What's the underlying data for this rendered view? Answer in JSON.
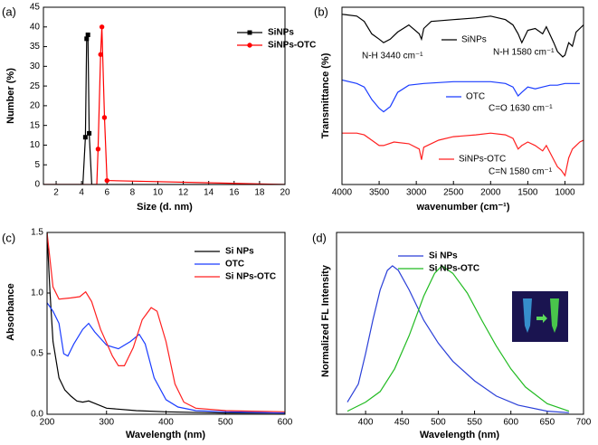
{
  "chart_data": [
    {
      "type": "line",
      "panel_label": "(a)",
      "xlabel": "Size (d. nm)",
      "ylabel": "Number (%)",
      "xlim": [
        1,
        20
      ],
      "xticks": [
        2,
        4,
        6,
        8,
        10,
        12,
        14,
        16,
        18,
        20
      ],
      "ylim": [
        0,
        45
      ],
      "yticks": [
        0,
        5,
        10,
        15,
        20,
        25,
        30,
        35,
        40,
        45
      ],
      "legend": "upper right",
      "series": [
        {
          "name": "SiNPs",
          "color": "#000000",
          "marker": "square",
          "x": [
            1,
            4.1,
            4.3,
            4.4,
            4.5,
            4.6,
            4.8,
            20
          ],
          "values": [
            0,
            0,
            12,
            37,
            38,
            13,
            0,
            0
          ]
        },
        {
          "name": "SiNPs-OTC",
          "color": "#ff0000",
          "marker": "circle",
          "x": [
            1,
            5.2,
            5.3,
            5.5,
            5.6,
            5.8,
            6.0,
            20
          ],
          "values": [
            0,
            0,
            9,
            33,
            40,
            17,
            1,
            0
          ]
        }
      ]
    },
    {
      "type": "line",
      "panel_label": "(b)",
      "xlabel": "wavenumber (cm⁻¹)",
      "ylabel": "Transmittance (%)",
      "xlim": [
        4000,
        750
      ],
      "xticks": [
        4000,
        3500,
        3000,
        2500,
        2000,
        1500,
        1000
      ],
      "ylim": [
        0,
        100
      ],
      "legend": "inline",
      "annotations": [
        "N-H 3440 cm⁻¹",
        "N-H 1580 cm⁻¹",
        "C=O 1630 cm⁻¹",
        "C=N 1580 cm⁻¹"
      ],
      "series": [
        {
          "name": "SiNPs",
          "color": "#000000",
          "x": [
            4000,
            3800,
            3700,
            3600,
            3500,
            3440,
            3350,
            3250,
            3100,
            2960,
            2930,
            2900,
            2800,
            2500,
            2200,
            2000,
            1800,
            1700,
            1630,
            1580,
            1500,
            1400,
            1300,
            1250,
            1150,
            1100,
            1030,
            1000,
            950,
            900,
            850,
            800,
            750
          ],
          "values": [
            96,
            95,
            92,
            85,
            82,
            80,
            82,
            86,
            90,
            85,
            82,
            88,
            92,
            93,
            94,
            95,
            93,
            90,
            85,
            80,
            87,
            88,
            85,
            89,
            80,
            75,
            72,
            73,
            80,
            78,
            86,
            88,
            90
          ]
        },
        {
          "name": "OTC",
          "color": "#1a3cff",
          "x": [
            4000,
            3800,
            3700,
            3600,
            3500,
            3440,
            3350,
            3250,
            3100,
            2900,
            2500,
            2000,
            1800,
            1700,
            1630,
            1580,
            1500,
            1400,
            1300,
            1200,
            1100,
            1000,
            900,
            800
          ],
          "values": [
            59,
            57,
            55,
            48,
            43,
            41,
            44,
            52,
            56,
            57,
            58,
            58,
            57,
            55,
            50,
            52,
            55,
            54,
            55,
            56,
            56,
            57,
            57,
            57
          ]
        },
        {
          "name": "SiNPs-OTC",
          "color": "#ff2020",
          "x": [
            4000,
            3800,
            3700,
            3600,
            3500,
            3440,
            3300,
            3100,
            2960,
            2930,
            2900,
            2700,
            2500,
            2200,
            2000,
            1800,
            1700,
            1630,
            1580,
            1500,
            1400,
            1300,
            1250,
            1150,
            1100,
            1050,
            1000,
            950,
            900,
            850,
            800,
            750
          ],
          "values": [
            29,
            29,
            28,
            25,
            22,
            22,
            24,
            23,
            20,
            14,
            21,
            25,
            27,
            28,
            29,
            28,
            26,
            20,
            22,
            24,
            22,
            19,
            22,
            14,
            10,
            8,
            5,
            15,
            20,
            22,
            24,
            25
          ]
        }
      ]
    },
    {
      "type": "line",
      "panel_label": "(c)",
      "xlabel": "Wavelength (nm)",
      "ylabel": "Absorbance",
      "xlim": [
        200,
        600
      ],
      "xticks": [
        200,
        300,
        400,
        500,
        600
      ],
      "ylim": [
        0,
        1.5
      ],
      "yticks": [
        {
          "value": 0,
          "label": "0.0"
        },
        0.5,
        {
          "value": 1,
          "label": "1.0"
        },
        1.5
      ],
      "legend": "upper right",
      "series": [
        {
          "name": "Si NPs",
          "color": "#000000",
          "x": [
            200,
            205,
            210,
            220,
            230,
            240,
            250,
            260,
            270,
            280,
            300,
            350,
            400,
            500,
            600
          ],
          "values": [
            1.5,
            1.0,
            0.6,
            0.3,
            0.2,
            0.15,
            0.11,
            0.1,
            0.11,
            0.09,
            0.05,
            0.03,
            0.02,
            0.01,
            0.01
          ]
        },
        {
          "name": "OTC",
          "color": "#1a3cff",
          "x": [
            200,
            210,
            220,
            228,
            235,
            245,
            260,
            270,
            280,
            300,
            320,
            340,
            355,
            365,
            380,
            400,
            420,
            450,
            500,
            600
          ],
          "values": [
            0.92,
            0.85,
            0.75,
            0.5,
            0.48,
            0.58,
            0.7,
            0.75,
            0.68,
            0.57,
            0.54,
            0.6,
            0.66,
            0.58,
            0.3,
            0.12,
            0.06,
            0.03,
            0.02,
            0.01
          ]
        },
        {
          "name": "Si NPs-OTC",
          "color": "#ff2020",
          "x": [
            200,
            210,
            220,
            240,
            255,
            265,
            275,
            290,
            310,
            320,
            330,
            345,
            360,
            375,
            385,
            400,
            415,
            430,
            450,
            500,
            600
          ],
          "values": [
            1.5,
            1.05,
            0.95,
            0.96,
            0.97,
            1.01,
            0.93,
            0.7,
            0.48,
            0.4,
            0.4,
            0.55,
            0.78,
            0.88,
            0.85,
            0.6,
            0.25,
            0.1,
            0.05,
            0.03,
            0.02
          ]
        }
      ]
    },
    {
      "type": "line",
      "panel_label": "(d)",
      "xlabel": "Wavelength (nm)",
      "ylabel": "Normalized FL Intensity",
      "xlim": [
        360,
        700
      ],
      "xticks": [
        400,
        450,
        500,
        550,
        600,
        650,
        700
      ],
      "ylim": [
        0,
        1.2
      ],
      "legend": "upper right",
      "series": [
        {
          "name": "Si NPs",
          "color": "#2a3fd8",
          "x": [
            375,
            390,
            400,
            410,
            420,
            430,
            437,
            445,
            460,
            480,
            500,
            520,
            550,
            580,
            610,
            650,
            680
          ],
          "values": [
            0.08,
            0.2,
            0.4,
            0.62,
            0.82,
            0.95,
            0.98,
            0.95,
            0.82,
            0.62,
            0.47,
            0.35,
            0.22,
            0.12,
            0.06,
            0.02,
            0.01
          ]
        },
        {
          "name": "Si NPs-OTC",
          "color": "#22bb22",
          "x": [
            375,
            400,
            420,
            440,
            460,
            480,
            495,
            505,
            520,
            540,
            560,
            580,
            600,
            620,
            650,
            680
          ],
          "values": [
            0.02,
            0.08,
            0.15,
            0.3,
            0.52,
            0.78,
            0.93,
            0.98,
            0.93,
            0.8,
            0.62,
            0.45,
            0.3,
            0.18,
            0.07,
            0.02
          ]
        }
      ]
    }
  ]
}
